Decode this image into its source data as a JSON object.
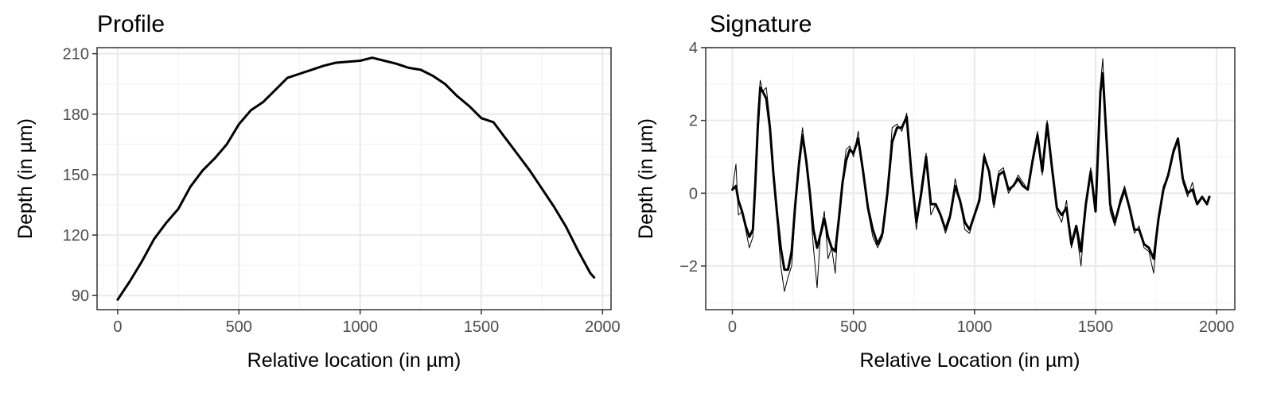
{
  "chart_data": [
    {
      "type": "line",
      "title": "Profile",
      "xlabel": "Relative location (in µm)",
      "ylabel": "Depth (in µm)",
      "xlim": [
        -85,
        2035
      ],
      "ylim": [
        83,
        213
      ],
      "xticks": [
        0,
        500,
        1000,
        1500,
        2000
      ],
      "yticks": [
        90,
        120,
        150,
        180,
        210
      ],
      "grid": true,
      "series": [
        {
          "thin": false,
          "x": [
            0,
            50,
            100,
            150,
            200,
            250,
            300,
            350,
            400,
            450,
            500,
            550,
            600,
            650,
            700,
            750,
            800,
            850,
            900,
            950,
            1000,
            1050,
            1100,
            1150,
            1200,
            1250,
            1300,
            1350,
            1400,
            1450,
            1500,
            1550,
            1600,
            1650,
            1700,
            1750,
            1800,
            1850,
            1900,
            1950,
            1965
          ],
          "y": [
            88,
            97,
            107,
            118,
            126,
            133,
            144,
            152,
            158,
            165,
            175,
            182,
            186,
            192,
            198,
            200,
            202,
            204,
            205.5,
            206,
            206.5,
            208,
            206.5,
            205,
            203,
            202,
            199,
            195,
            189,
            184,
            178,
            176,
            168,
            160,
            152,
            143,
            134,
            124,
            112,
            101,
            99
          ]
        }
      ]
    },
    {
      "type": "line",
      "title": "Signature",
      "xlabel": "Relative Location (in µm)",
      "ylabel": "Depth (in µm)",
      "xlim": [
        -110,
        2075
      ],
      "ylim": [
        -3.2,
        4
      ],
      "xticks": [
        0,
        500,
        1000,
        1500,
        2000
      ],
      "yticks": [
        -2,
        0,
        2,
        4
      ],
      "grid": true,
      "series": [
        {
          "thin": true,
          "x": [
            0,
            15,
            25,
            40,
            55,
            70,
            85,
            95,
            105,
            115,
            125,
            140,
            155,
            170,
            185,
            200,
            215,
            230,
            245,
            260,
            275,
            290,
            305,
            320,
            335,
            350,
            365,
            380,
            395,
            410,
            425,
            440,
            455,
            470,
            485,
            500,
            520,
            540,
            560,
            580,
            600,
            620,
            640,
            660,
            680,
            700,
            720,
            740,
            760,
            780,
            800,
            820,
            840,
            860,
            880,
            900,
            920,
            940,
            960,
            980,
            1000,
            1020,
            1040,
            1060,
            1080,
            1100,
            1120,
            1140,
            1160,
            1180,
            1200,
            1220,
            1240,
            1260,
            1280,
            1300,
            1320,
            1340,
            1360,
            1380,
            1400,
            1420,
            1440,
            1460,
            1480,
            1500,
            1520,
            1530,
            1545,
            1560,
            1580,
            1600,
            1620,
            1640,
            1660,
            1680,
            1700,
            1720,
            1740,
            1760,
            1780,
            1800,
            1820,
            1840,
            1860,
            1880,
            1900,
            1920,
            1940,
            1960,
            1970
          ],
          "y": [
            0.1,
            0.8,
            -0.6,
            -0.5,
            -1.0,
            -1.5,
            -1.2,
            0.5,
            2.2,
            3.1,
            2.8,
            2.9,
            2.0,
            0.4,
            -0.8,
            -2.0,
            -2.7,
            -2.3,
            -2.0,
            -0.5,
            1.0,
            1.8,
            0.8,
            -0.2,
            -1.5,
            -2.6,
            -1.0,
            -0.5,
            -1.8,
            -1.5,
            -2.2,
            -0.5,
            0.4,
            1.2,
            1.3,
            1.0,
            1.7,
            0.5,
            -0.5,
            -1.2,
            -1.5,
            -1.2,
            0.0,
            1.8,
            1.9,
            1.7,
            2.2,
            0.3,
            -1.0,
            0.2,
            1.1,
            -0.6,
            -0.3,
            -0.6,
            -1.1,
            -0.7,
            0.4,
            -0.2,
            -1.0,
            -1.1,
            -0.6,
            -0.1,
            1.1,
            0.6,
            -0.4,
            0.6,
            0.7,
            0.0,
            0.2,
            0.5,
            0.3,
            0.1,
            1.0,
            1.7,
            0.5,
            2.0,
            0.8,
            -0.5,
            -0.8,
            -0.2,
            -1.5,
            -1.0,
            -2.0,
            -0.3,
            0.7,
            -0.5,
            3.0,
            3.7,
            1.2,
            -0.5,
            -0.9,
            -0.2,
            0.2,
            -0.4,
            -1.1,
            -0.9,
            -1.5,
            -1.6,
            -2.2,
            -0.7,
            0.2,
            0.5,
            1.2,
            1.5,
            0.3,
            -0.1,
            0.3,
            -0.3,
            -0.1,
            -0.3,
            -0.1
          ]
        },
        {
          "thin": false,
          "x": [
            0,
            15,
            25,
            40,
            55,
            70,
            85,
            95,
            105,
            115,
            125,
            140,
            155,
            170,
            185,
            200,
            215,
            230,
            245,
            260,
            275,
            290,
            305,
            320,
            335,
            350,
            365,
            380,
            395,
            410,
            425,
            440,
            455,
            470,
            485,
            500,
            520,
            540,
            560,
            580,
            600,
            620,
            640,
            660,
            680,
            700,
            720,
            740,
            760,
            780,
            800,
            820,
            840,
            860,
            880,
            900,
            920,
            940,
            960,
            980,
            1000,
            1020,
            1040,
            1060,
            1080,
            1100,
            1120,
            1140,
            1160,
            1180,
            1200,
            1220,
            1240,
            1260,
            1280,
            1300,
            1320,
            1340,
            1360,
            1380,
            1400,
            1420,
            1440,
            1460,
            1480,
            1500,
            1520,
            1530,
            1545,
            1560,
            1580,
            1600,
            1620,
            1640,
            1660,
            1680,
            1700,
            1720,
            1740,
            1760,
            1780,
            1800,
            1820,
            1840,
            1860,
            1880,
            1900,
            1920,
            1940,
            1960,
            1970
          ],
          "y": [
            0.1,
            0.2,
            -0.2,
            -0.5,
            -0.9,
            -1.2,
            -1.0,
            0.3,
            1.8,
            2.9,
            2.8,
            2.6,
            1.8,
            0.5,
            -0.6,
            -1.5,
            -2.1,
            -2.1,
            -1.6,
            -0.3,
            0.8,
            1.6,
            0.9,
            0.0,
            -1.0,
            -1.5,
            -1.1,
            -0.7,
            -1.2,
            -1.5,
            -1.6,
            -0.7,
            0.3,
            0.9,
            1.2,
            1.1,
            1.5,
            0.6,
            -0.4,
            -1.0,
            -1.4,
            -1.1,
            0.0,
            1.4,
            1.8,
            1.8,
            2.1,
            0.5,
            -0.8,
            0.0,
            1.0,
            -0.3,
            -0.3,
            -0.6,
            -1.0,
            -0.6,
            0.2,
            -0.2,
            -0.8,
            -1.0,
            -0.6,
            -0.2,
            1.0,
            0.6,
            -0.3,
            0.5,
            0.6,
            0.1,
            0.2,
            0.4,
            0.2,
            0.1,
            0.9,
            1.6,
            0.6,
            1.9,
            0.7,
            -0.4,
            -0.6,
            -0.4,
            -1.4,
            -0.9,
            -1.6,
            -0.3,
            0.6,
            -0.5,
            2.8,
            3.3,
            1.5,
            -0.3,
            -0.8,
            -0.3,
            0.1,
            -0.4,
            -1.0,
            -1.0,
            -1.4,
            -1.5,
            -1.8,
            -0.7,
            0.1,
            0.5,
            1.1,
            1.5,
            0.4,
            0.0,
            0.1,
            -0.3,
            -0.1,
            -0.3,
            -0.1
          ]
        }
      ]
    }
  ]
}
